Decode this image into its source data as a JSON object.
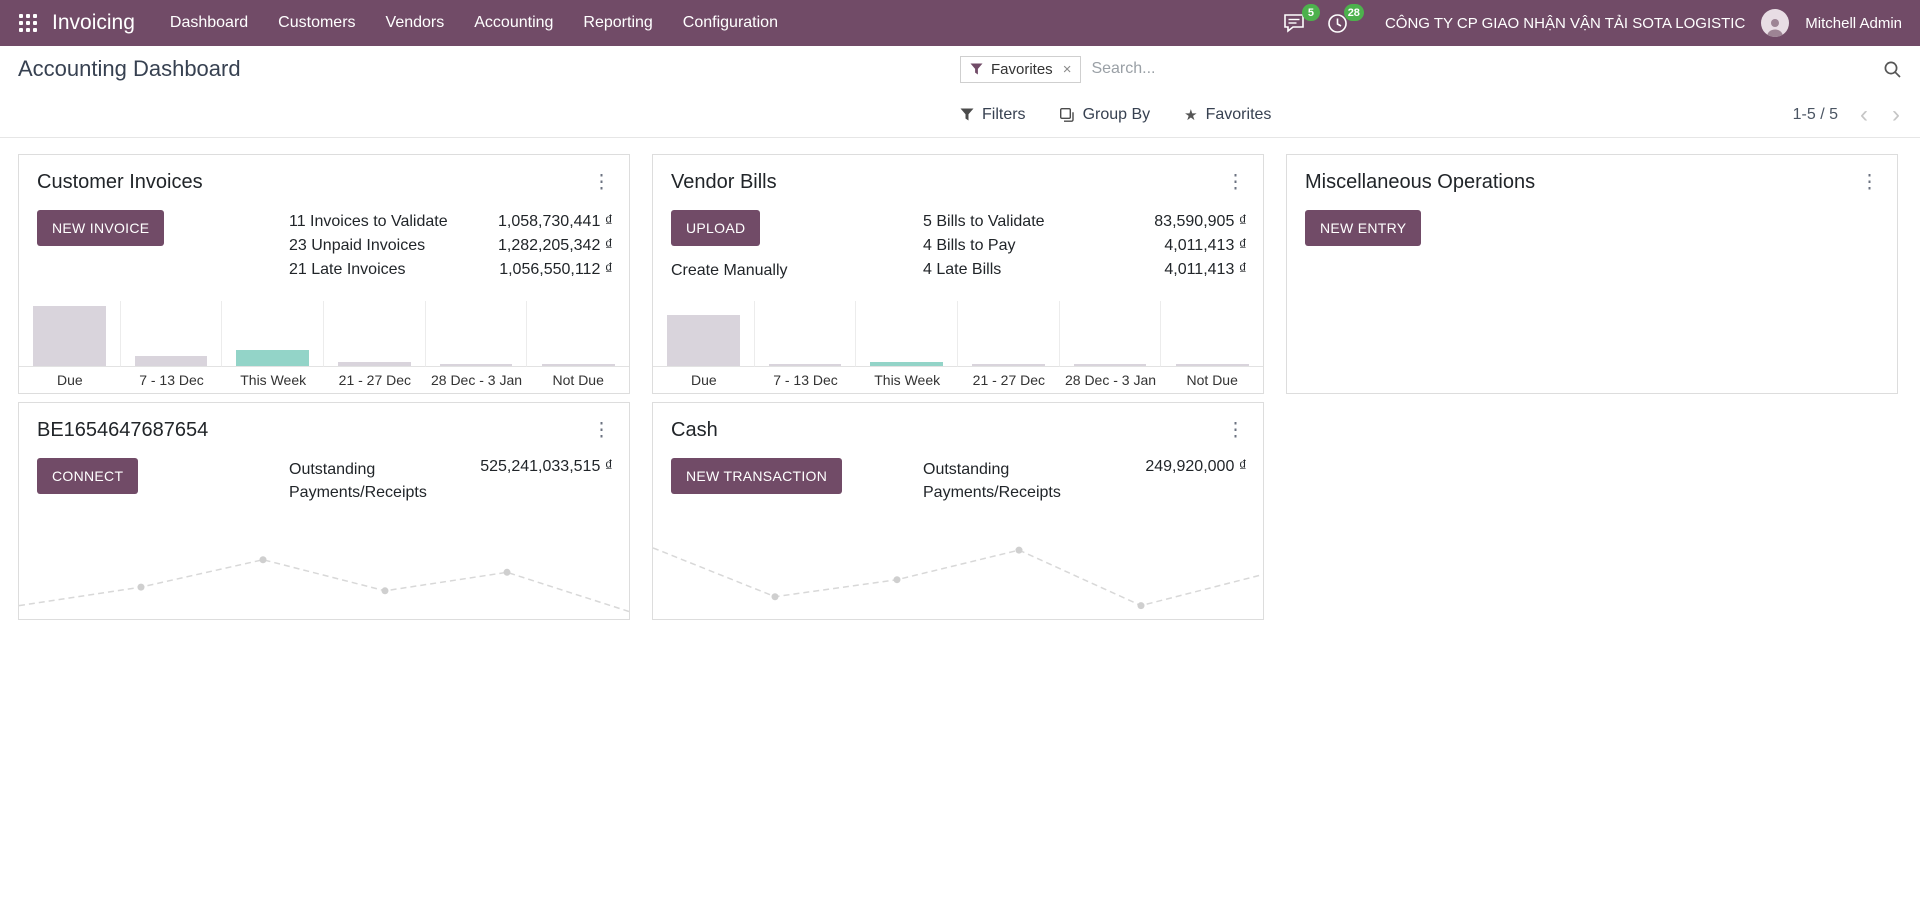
{
  "colors": {
    "primary": "#714B67",
    "badge_green": "#4db14d",
    "bar_gray": "#d9d4dc",
    "bar_teal": "#93d4c8",
    "line_gray": "#d8d8d8"
  },
  "topbar": {
    "app_title": "Invoicing",
    "menu": [
      "Dashboard",
      "Customers",
      "Vendors",
      "Accounting",
      "Reporting",
      "Configuration"
    ],
    "messages_badge": "5",
    "activities_badge": "28",
    "company": "CÔNG TY CP GIAO NHẬN VẬN TẢI SOTA LOGISTIC",
    "user": "Mitchell Admin"
  },
  "control_panel": {
    "breadcrumb": "Accounting Dashboard",
    "search": {
      "facet_label": "Favorites",
      "facet_remove": "×",
      "placeholder": "Search..."
    },
    "filters_label": "Filters",
    "group_by_label": "Group By",
    "favorites_label": "Favorites",
    "pager": "1-5 / 5"
  },
  "cards": {
    "customer_invoices": {
      "title": "Customer Invoices",
      "button": "NEW INVOICE",
      "rows": [
        {
          "label": "11 Invoices to Validate",
          "amount": "1,058,730,441 ₫"
        },
        {
          "label": "23 Unpaid Invoices",
          "amount": "1,282,205,342 ₫"
        },
        {
          "label": "21 Late Invoices",
          "amount": "1,056,550,112 ₫"
        }
      ],
      "chart_data": {
        "type": "bar",
        "categories": [
          "Due",
          "7 - 13 Dec",
          "This Week",
          "21 - 27 Dec",
          "28 Dec - 3 Jan",
          "Not Due"
        ],
        "values": [
          92,
          15,
          25,
          6,
          3,
          3
        ],
        "colors": [
          "#d9d4dc",
          "#d9d4dc",
          "#93d4c8",
          "#d9d4dc",
          "#d9d4dc",
          "#d9d4dc"
        ]
      }
    },
    "vendor_bills": {
      "title": "Vendor Bills",
      "button": "UPLOAD",
      "create_manually": "Create Manually",
      "rows": [
        {
          "label": "5 Bills to Validate",
          "amount": "83,590,905 ₫"
        },
        {
          "label": "4 Bills to Pay",
          "amount": "4,011,413 ₫"
        },
        {
          "label": "4 Late Bills",
          "amount": "4,011,413 ₫"
        }
      ],
      "chart_data": {
        "type": "bar",
        "categories": [
          "Due",
          "7 - 13 Dec",
          "This Week",
          "21 - 27 Dec",
          "28 Dec - 3 Jan",
          "Not Due"
        ],
        "values": [
          78,
          3,
          6,
          3,
          3,
          3
        ],
        "colors": [
          "#d9d4dc",
          "#d9d4dc",
          "#93d4c8",
          "#d9d4dc",
          "#d9d4dc",
          "#d9d4dc"
        ]
      }
    },
    "misc_operations": {
      "title": "Miscellaneous Operations",
      "button": "NEW ENTRY"
    },
    "bank": {
      "title": "BE1654647687654",
      "button": "CONNECT",
      "row": {
        "label": "Outstanding Payments/Receipts",
        "amount": "525,241,033,515 ₫"
      },
      "chart_data": {
        "type": "line",
        "values": [
          10,
          35,
          72,
          30,
          55,
          2
        ]
      }
    },
    "cash": {
      "title": "Cash",
      "button": "NEW TRANSACTION",
      "row": {
        "label": "Outstanding Payments/Receipts",
        "amount": "249,920,000 ₫"
      },
      "chart_data": {
        "type": "line",
        "values": [
          88,
          22,
          45,
          85,
          10,
          52
        ]
      }
    }
  }
}
